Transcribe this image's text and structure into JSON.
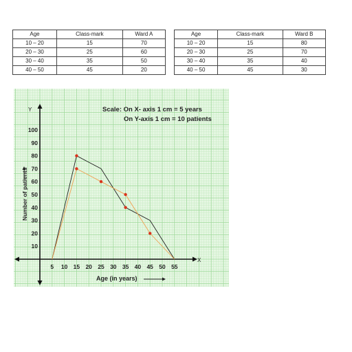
{
  "table_a": {
    "headers": [
      "Age",
      "Class-mark",
      "Ward A"
    ],
    "rows": [
      [
        "10 – 20",
        "15",
        "70"
      ],
      [
        "20 – 30",
        "25",
        "60"
      ],
      [
        "30 – 40",
        "35",
        "50"
      ],
      [
        "40 – 50",
        "45",
        "20"
      ]
    ]
  },
  "table_b": {
    "headers": [
      "Age",
      "Class-mark",
      "Ward B"
    ],
    "rows": [
      [
        "10 – 20",
        "15",
        "80"
      ],
      [
        "20 – 30",
        "25",
        "70"
      ],
      [
        "30 – 40",
        "35",
        "40"
      ],
      [
        "40 – 50",
        "45",
        "30"
      ]
    ]
  },
  "chart_data": {
    "type": "line",
    "scale_text": [
      "Scale: On X- axis 1 cm = 5 years",
      "On Y-axis 1 cm = 10 patients"
    ],
    "xlabel": "Age (in years)",
    "ylabel": "Number of patients",
    "x_axis_letter": "X",
    "y_axis_letter": "Y",
    "xlim": [
      0,
      60
    ],
    "ylim": [
      0,
      100
    ],
    "x_ticks": [
      5,
      10,
      15,
      20,
      25,
      30,
      35,
      40,
      45,
      50,
      55
    ],
    "y_ticks": [
      10,
      20,
      30,
      40,
      50,
      60,
      70,
      80,
      90,
      100
    ],
    "grid": true,
    "series": [
      {
        "color": "#222222",
        "marker_color": "#d9331c",
        "x": [
          5,
          15,
          25,
          35,
          45,
          55
        ],
        "y": [
          0,
          80,
          70,
          40,
          30,
          0
        ],
        "markers": [
          false,
          true,
          false,
          true,
          false,
          false
        ]
      },
      {
        "color": "#f0a050",
        "marker_color": "#d9331c",
        "x": [
          5,
          15,
          25,
          35,
          45,
          55
        ],
        "y": [
          0,
          70,
          60,
          50,
          20,
          0
        ],
        "markers": [
          false,
          true,
          true,
          true,
          true,
          false
        ]
      }
    ]
  }
}
